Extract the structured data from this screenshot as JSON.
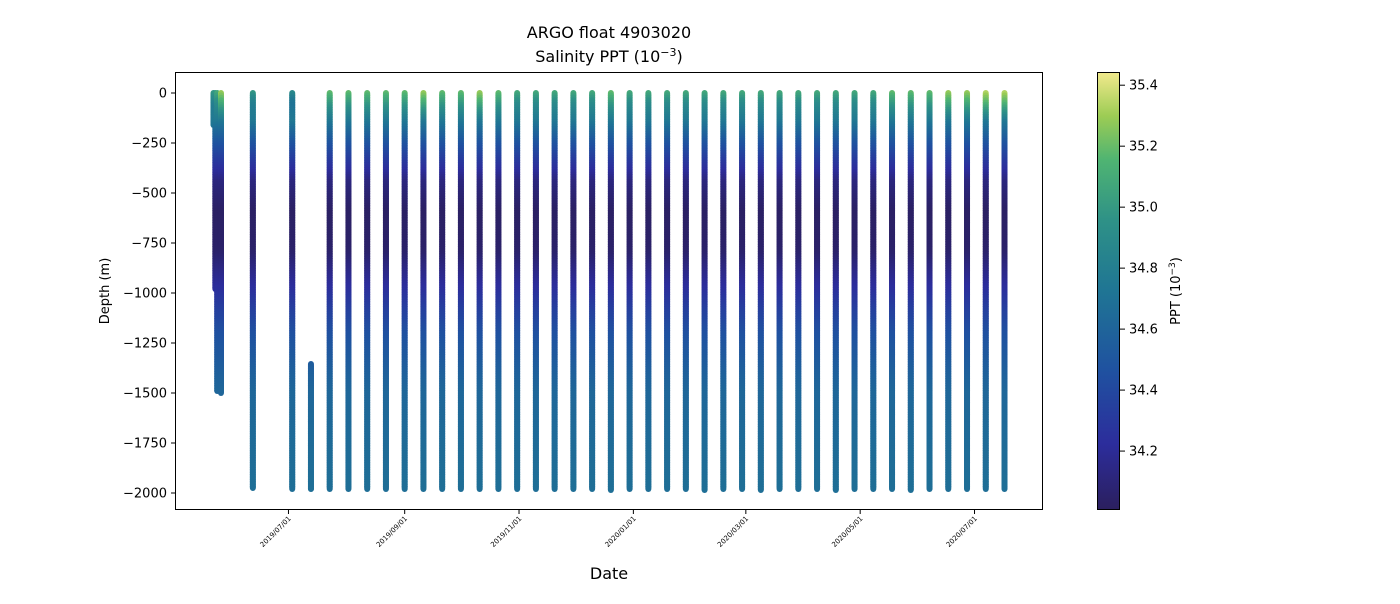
{
  "chart_data": {
    "type": "scatter",
    "title": "ARGO float 4903020",
    "subtitle_prefix": "Salinity PPT (10",
    "subtitle_exp": "−3",
    "subtitle_suffix": ")",
    "xlabel": "Date",
    "ylabel": "Depth (m)",
    "colorbar_label_prefix": "PPT (10",
    "colorbar_label_exp": "−3",
    "colorbar_label_suffix": ")",
    "colormap": "haline",
    "color_range": [
      34.01,
      35.44
    ],
    "xlim": [
      "2019-05-02",
      "2020-08-06"
    ],
    "ylim": [
      -2080,
      100
    ],
    "grid": false,
    "x_ticks": [
      {
        "date": "2019-07-01",
        "label": "2019/07/01"
      },
      {
        "date": "2019-09-01",
        "label": "2019/09/01"
      },
      {
        "date": "2019-11-01",
        "label": "2019/11/01"
      },
      {
        "date": "2020-01-01",
        "label": "2020/01/01"
      },
      {
        "date": "2020-03-01",
        "label": "2020/03/01"
      },
      {
        "date": "2020-05-01",
        "label": "2020/05/01"
      },
      {
        "date": "2020-07-01",
        "label": "2020/07/01"
      }
    ],
    "y_ticks": [
      {
        "value": 0,
        "label": "0"
      },
      {
        "value": -250,
        "label": "−250"
      },
      {
        "value": -500,
        "label": "−500"
      },
      {
        "value": -750,
        "label": "−750"
      },
      {
        "value": -1000,
        "label": "−1000"
      },
      {
        "value": -1250,
        "label": "−1250"
      },
      {
        "value": -1500,
        "label": "−1500"
      },
      {
        "value": -1750,
        "label": "−1750"
      },
      {
        "value": -2000,
        "label": "−2000"
      }
    ],
    "colorbar_ticks": [
      {
        "value": 34.2,
        "label": "34.2"
      },
      {
        "value": 34.4,
        "label": "34.4"
      },
      {
        "value": 34.6,
        "label": "34.6"
      },
      {
        "value": 34.8,
        "label": "34.8"
      },
      {
        "value": 35.0,
        "label": "35.0"
      },
      {
        "value": 35.2,
        "label": "35.2"
      },
      {
        "value": 35.4,
        "label": "35.4"
      }
    ],
    "profiles": [
      {
        "date": "2019-05-22",
        "top": 0,
        "bottom": -160,
        "surface_salinity": 35.0
      },
      {
        "date": "2019-05-23",
        "top": 0,
        "bottom": -980,
        "surface_salinity": 35.0
      },
      {
        "date": "2019-05-24",
        "top": 0,
        "bottom": -1490,
        "surface_salinity": 35.1
      },
      {
        "date": "2019-05-26",
        "top": 0,
        "bottom": -1500,
        "surface_salinity": 35.3
      },
      {
        "date": "2019-06-12",
        "top": 0,
        "bottom": -1975,
        "surface_salinity": 35.0
      },
      {
        "date": "2019-07-03",
        "top": 0,
        "bottom": -1980,
        "surface_salinity": 34.9
      },
      {
        "date": "2019-07-13",
        "top": -1355,
        "bottom": -1980,
        "surface_salinity": 34.7
      },
      {
        "date": "2019-07-23",
        "top": 0,
        "bottom": -1980,
        "surface_salinity": 35.2
      },
      {
        "date": "2019-08-02",
        "top": 0,
        "bottom": -1980,
        "surface_salinity": 35.2
      },
      {
        "date": "2019-08-12",
        "top": 0,
        "bottom": -1980,
        "surface_salinity": 35.2
      },
      {
        "date": "2019-08-22",
        "top": 0,
        "bottom": -1980,
        "surface_salinity": 35.2
      },
      {
        "date": "2019-09-01",
        "top": 0,
        "bottom": -1980,
        "surface_salinity": 35.2
      },
      {
        "date": "2019-09-11",
        "top": 0,
        "bottom": -1980,
        "surface_salinity": 35.3
      },
      {
        "date": "2019-09-21",
        "top": 0,
        "bottom": -1980,
        "surface_salinity": 35.2
      },
      {
        "date": "2019-10-01",
        "top": 0,
        "bottom": -1980,
        "surface_salinity": 35.2
      },
      {
        "date": "2019-10-11",
        "top": 0,
        "bottom": -1980,
        "surface_salinity": 35.3
      },
      {
        "date": "2019-10-21",
        "top": 0,
        "bottom": -1980,
        "surface_salinity": 35.2
      },
      {
        "date": "2019-10-31",
        "top": 0,
        "bottom": -1980,
        "surface_salinity": 35.1
      },
      {
        "date": "2019-11-10",
        "top": 0,
        "bottom": -1980,
        "surface_salinity": 35.1
      },
      {
        "date": "2019-11-20",
        "top": 0,
        "bottom": -1980,
        "surface_salinity": 35.1
      },
      {
        "date": "2019-11-30",
        "top": 0,
        "bottom": -1980,
        "surface_salinity": 35.1
      },
      {
        "date": "2019-12-10",
        "top": 0,
        "bottom": -1980,
        "surface_salinity": 35.1
      },
      {
        "date": "2019-12-20",
        "top": 0,
        "bottom": -1985,
        "surface_salinity": 35.2
      },
      {
        "date": "2019-12-30",
        "top": 0,
        "bottom": -1980,
        "surface_salinity": 35.1
      },
      {
        "date": "2020-01-09",
        "top": 0,
        "bottom": -1980,
        "surface_salinity": 35.1
      },
      {
        "date": "2020-01-19",
        "top": 0,
        "bottom": -1980,
        "surface_salinity": 35.1
      },
      {
        "date": "2020-01-29",
        "top": 0,
        "bottom": -1980,
        "surface_salinity": 35.1
      },
      {
        "date": "2020-02-08",
        "top": 0,
        "bottom": -1985,
        "surface_salinity": 35.1
      },
      {
        "date": "2020-02-18",
        "top": 0,
        "bottom": -1980,
        "surface_salinity": 35.1
      },
      {
        "date": "2020-02-28",
        "top": 0,
        "bottom": -1980,
        "surface_salinity": 35.1
      },
      {
        "date": "2020-03-09",
        "top": 0,
        "bottom": -1985,
        "surface_salinity": 35.1
      },
      {
        "date": "2020-03-19",
        "top": 0,
        "bottom": -1980,
        "surface_salinity": 35.1
      },
      {
        "date": "2020-03-29",
        "top": 0,
        "bottom": -1980,
        "surface_salinity": 35.1
      },
      {
        "date": "2020-04-08",
        "top": 0,
        "bottom": -1980,
        "surface_salinity": 35.1
      },
      {
        "date": "2020-04-18",
        "top": 0,
        "bottom": -1985,
        "surface_salinity": 35.1
      },
      {
        "date": "2020-04-28",
        "top": 0,
        "bottom": -1980,
        "surface_salinity": 35.1
      },
      {
        "date": "2020-05-08",
        "top": 0,
        "bottom": -1980,
        "surface_salinity": 35.1
      },
      {
        "date": "2020-05-18",
        "top": 0,
        "bottom": -1980,
        "surface_salinity": 35.2
      },
      {
        "date": "2020-05-28",
        "top": 0,
        "bottom": -1985,
        "surface_salinity": 35.2
      },
      {
        "date": "2020-06-07",
        "top": 0,
        "bottom": -1980,
        "surface_salinity": 35.2
      },
      {
        "date": "2020-06-17",
        "top": 0,
        "bottom": -1980,
        "surface_salinity": 35.3
      },
      {
        "date": "2020-06-27",
        "top": 0,
        "bottom": -1980,
        "surface_salinity": 35.3
      },
      {
        "date": "2020-07-07",
        "top": 0,
        "bottom": -1980,
        "surface_salinity": 35.35
      },
      {
        "date": "2020-07-17",
        "top": 0,
        "bottom": -1980,
        "surface_salinity": 35.35
      }
    ]
  }
}
